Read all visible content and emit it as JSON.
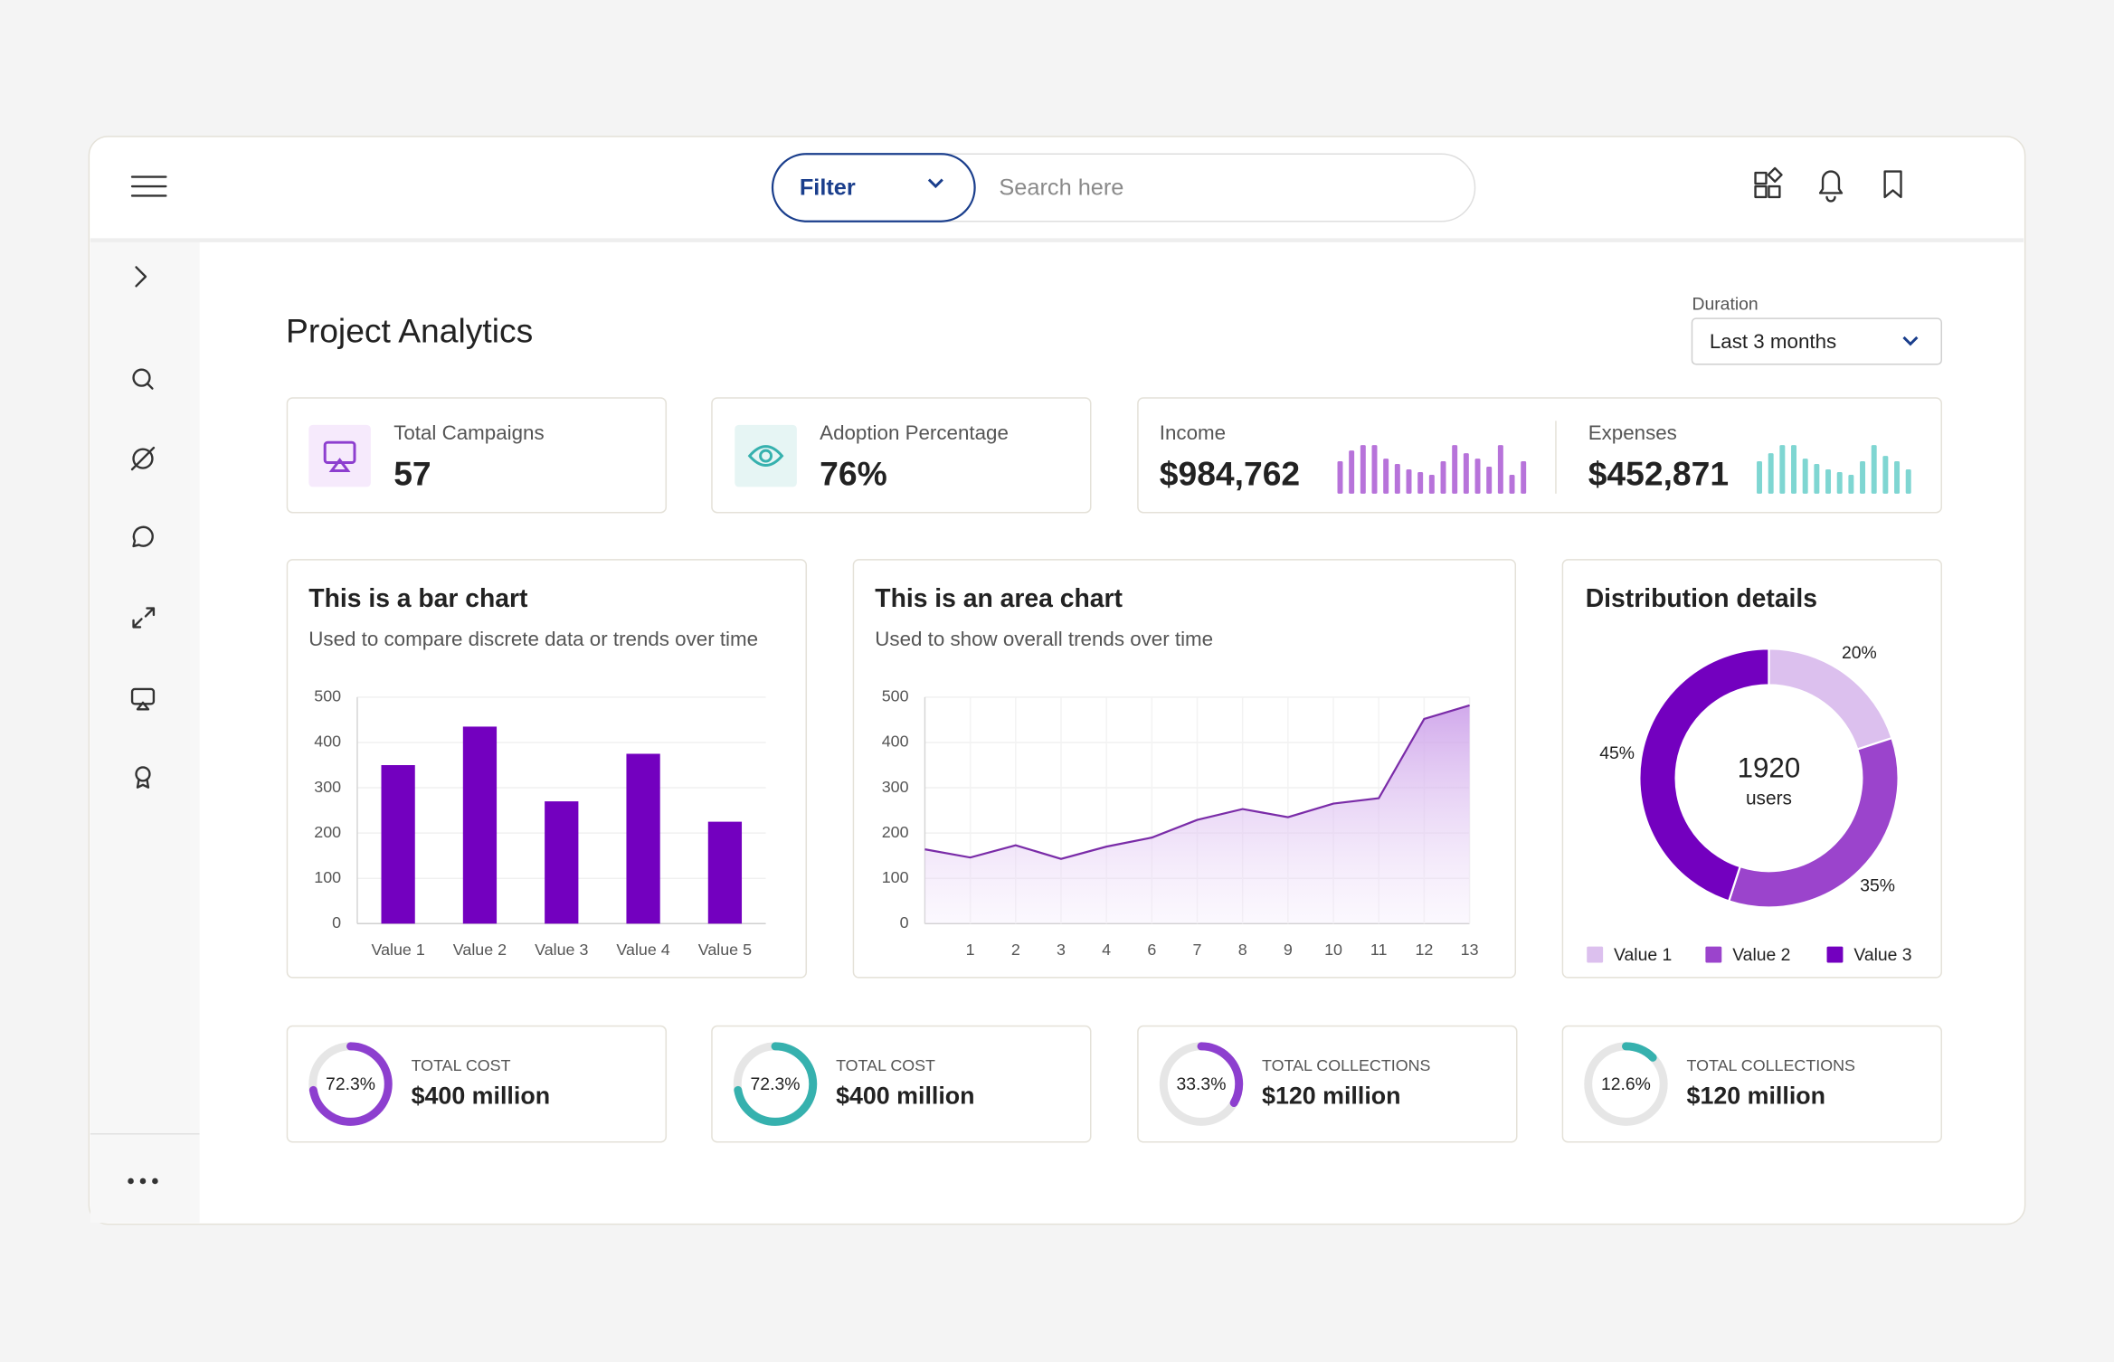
{
  "header": {
    "filter": "Filter",
    "search_placeholder": "Search here"
  },
  "page_title": "Project Analytics",
  "duration": {
    "label": "Duration",
    "value": "Last 3 months"
  },
  "kpis": [
    {
      "label": "Total Campaigns",
      "value": "57"
    },
    {
      "label": "Adoption Percentage",
      "value": "76%"
    }
  ],
  "finance": [
    {
      "label": "Income",
      "value": "$984,762",
      "color": "#b773da",
      "spark": [
        24,
        32,
        36,
        36,
        26,
        22,
        18,
        16,
        14,
        24,
        36,
        30,
        26,
        20,
        36,
        14,
        24
      ]
    },
    {
      "label": "Expenses",
      "value": "$452,871",
      "color": "#7fd6d2",
      "spark": [
        24,
        30,
        36,
        36,
        26,
        22,
        18,
        16,
        14,
        24,
        36,
        28,
        24,
        18
      ]
    }
  ],
  "chart_data": [
    {
      "type": "bar",
      "title": "This is a bar chart",
      "subtitle": "Used to compare discrete data or trends over time",
      "categories": [
        "Value 1",
        "Value 2",
        "Value 3",
        "Value 4",
        "Value 5"
      ],
      "values": [
        350,
        435,
        270,
        375,
        225
      ],
      "color": "#7300bf",
      "ylim": [
        0,
        500
      ],
      "yticks": [
        0,
        100,
        200,
        300,
        400,
        500
      ],
      "grid": true
    },
    {
      "type": "area",
      "title": "This is an area chart",
      "subtitle": "Used to show overall trends over time",
      "categories": [
        null,
        "1",
        "2",
        "3",
        "4",
        "6",
        "7",
        "8",
        "9",
        "10",
        "11",
        "12",
        "13"
      ],
      "values": [
        164,
        146,
        173,
        143,
        170,
        190,
        229,
        253,
        235,
        265,
        277,
        452,
        482
      ],
      "color": "#7a2ca8",
      "ylim": [
        0,
        500
      ],
      "yticks": [
        0,
        100,
        200,
        300,
        400,
        500
      ],
      "grid": true
    },
    {
      "type": "pie",
      "title": "Distribution details",
      "center_value": 1920,
      "center_label": "users",
      "categories": [
        "Value 1",
        "Value 2",
        "Value 3"
      ],
      "values": [
        20,
        35,
        45
      ],
      "value_labels": [
        "20%",
        "35%",
        "45%"
      ],
      "colors": [
        "#dcc0ee",
        "#9b44cc",
        "#7300bf"
      ]
    }
  ],
  "summary": [
    {
      "label": "TOTAL COST",
      "value": "$400 million",
      "percent": 72.3,
      "percent_label": "72.3%",
      "color": "#8d3fcf"
    },
    {
      "label": "TOTAL COST",
      "value": "$400 million",
      "percent": 72.3,
      "percent_label": "72.3%",
      "color": "#36b1ae"
    },
    {
      "label": "TOTAL COLLECTIONS",
      "value": "$120 million",
      "percent": 33.3,
      "percent_label": "33.3%",
      "color": "#8d3fcf"
    },
    {
      "label": "TOTAL COLLECTIONS",
      "value": "$120 million",
      "percent": 12.6,
      "percent_label": "12.6%",
      "color": "#36b1ae"
    }
  ]
}
